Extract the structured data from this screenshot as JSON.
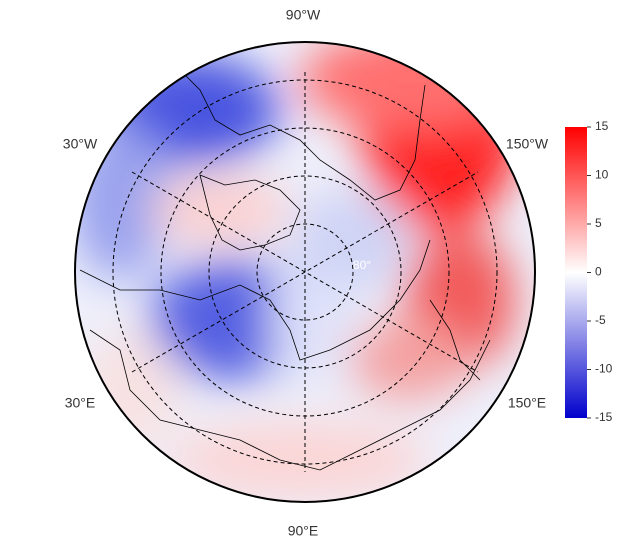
{
  "map": {
    "longitude_labels": [
      "90°W",
      "30°W",
      "150°W",
      "30°E",
      "150°E",
      "90°E"
    ],
    "latitude_label": "80°"
  },
  "colorbar": {
    "lim": [
      -15,
      15
    ],
    "ticks": [
      15,
      10,
      5,
      0,
      -5,
      -10,
      -15
    ],
    "colors": [
      "#0000cc",
      "#ffffff",
      "#ff0000"
    ]
  }
}
